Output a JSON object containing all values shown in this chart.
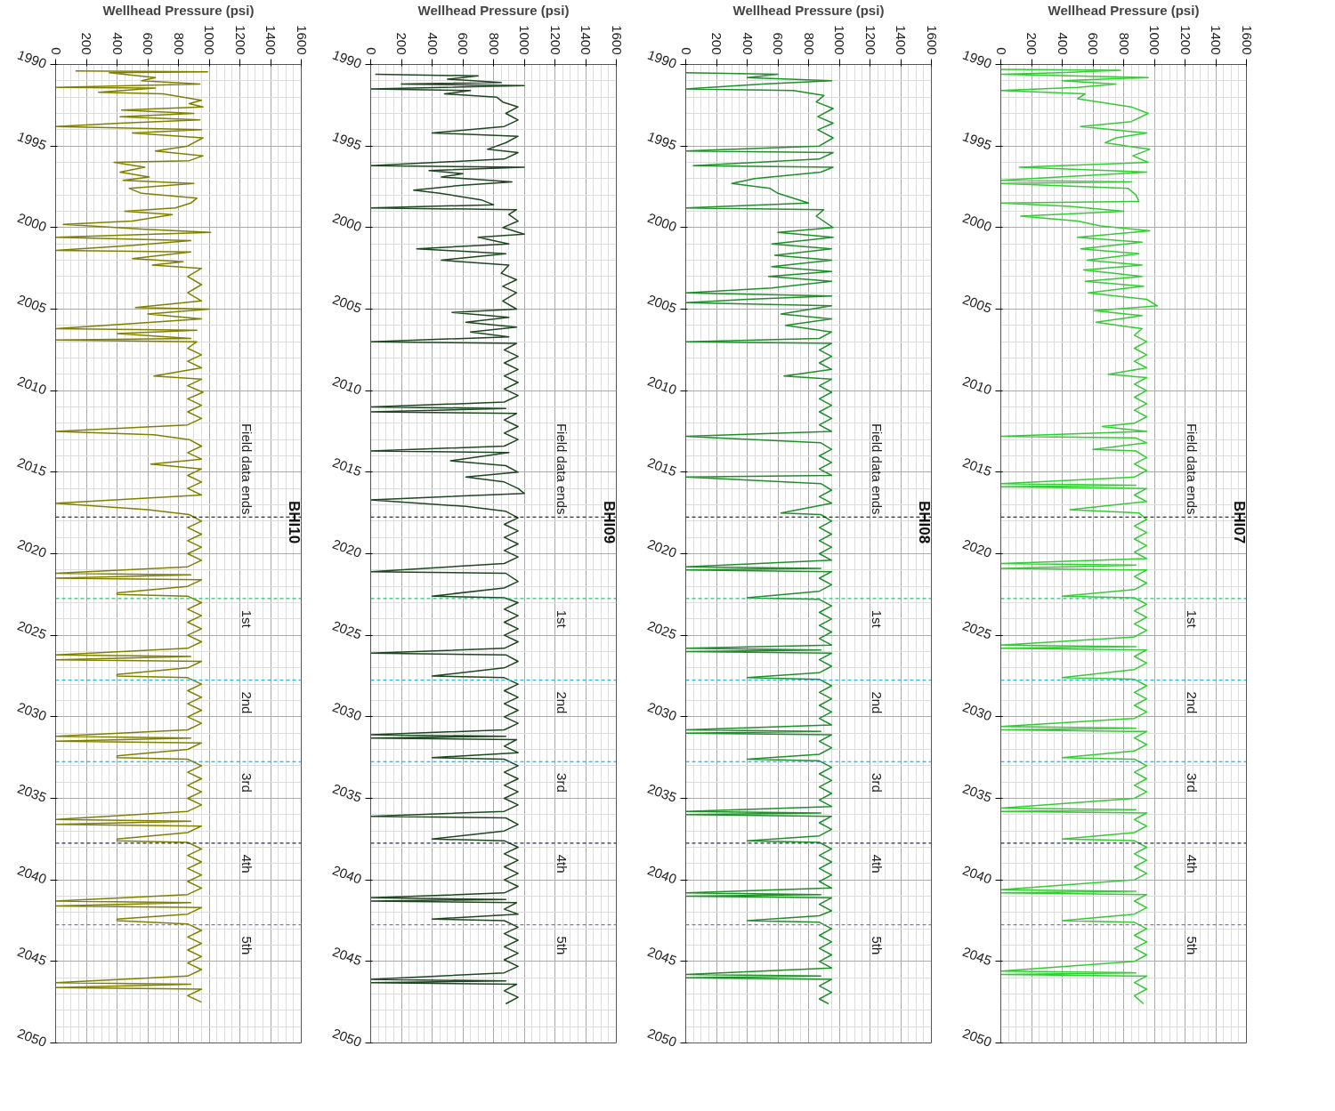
{
  "chart_data": [
    {
      "type": "line",
      "orientation": "horizontal",
      "xlabel": "Wellhead Pressure (psi)",
      "xlim": [
        0,
        1600
      ],
      "xticks": [
        0,
        200,
        400,
        600,
        800,
        1000,
        1200,
        1400,
        1600
      ],
      "ylim": [
        2050,
        1990
      ],
      "yticks": [
        1990,
        1995,
        2000,
        2005,
        2010,
        2015,
        2020,
        2025,
        2030,
        2035,
        2040,
        2045,
        2050
      ],
      "grid": true,
      "annotations": [
        "BHI10"
      ],
      "ref_lines": [
        {
          "axis": "y",
          "value": 2017.75,
          "label": "Field data ends",
          "color": "#000000",
          "line_style": "dashed"
        },
        {
          "axis": "y",
          "value": 2022.75,
          "label": "1st",
          "color": "#2fbf71",
          "line_style": "dashed"
        },
        {
          "axis": "y",
          "value": 2027.75,
          "label": "2nd",
          "color": "#2bb5e0",
          "line_style": "dashed"
        },
        {
          "axis": "y",
          "value": 2032.75,
          "label": "3rd",
          "color": "#2e86c1",
          "line_style": "dashed"
        },
        {
          "axis": "y",
          "value": 2037.75,
          "label": "4th",
          "color": "#1f2f5f",
          "line_style": "dashed"
        },
        {
          "axis": "y",
          "value": 2042.75,
          "label": "5th",
          "color": "#8e6fc1",
          "line_style": "dashed"
        }
      ],
      "series": [
        {
          "color": "#808000",
          "x": [
            1990.4,
            1990.45,
            1990.5,
            1990.8,
            1991.0,
            1991.2,
            1991.4,
            1991.45,
            1991.7,
            1991.8,
            1992.2,
            1992.4,
            1992.6,
            1992.8,
            1993.0,
            1993.2,
            1993.4,
            1993.6,
            1993.8,
            1994.0,
            1994.2,
            1994.5,
            1995.0,
            1995.3,
            1995.6,
            1995.9,
            1996.0,
            1996.3,
            1996.6,
            1996.9,
            1997.1,
            1997.3,
            1997.6,
            1997.9,
            1998.2,
            1998.5,
            1998.8,
            1999.0,
            1999.2,
            1999.6,
            1999.8,
            2000.1,
            2000.3,
            2000.6,
            2000.8,
            2001.1,
            2001.4,
            2001.5,
            2001.9,
            2002.1,
            2002.3,
            2002.5,
            2003.0,
            2003.5,
            2004.0,
            2004.5,
            2004.9,
            2005.0,
            2005.3,
            2005.6,
            2005.8,
            2006.2,
            2006.3,
            2006.5,
            2006.8,
            2006.9,
            2007.0,
            2007.4,
            2007.8,
            2008.2,
            2008.6,
            2009.1,
            2009.3,
            2009.7,
            2010.1,
            2010.5,
            2010.9,
            2011.3,
            2011.7,
            2012.1,
            2012.5,
            2012.7,
            2013.0,
            2013.4,
            2013.8,
            2014.2,
            2014.5,
            2014.8,
            2015.2,
            2015.6,
            2016.0,
            2016.4,
            2016.9,
            2017.3,
            2017.6,
            2018.0,
            2018.4,
            2018.8,
            2019.2,
            2019.6,
            2020.0,
            2020.4,
            2020.8,
            2021.2,
            2021.3,
            2021.5,
            2021.6,
            2022.0,
            2022.4,
            2022.5,
            2022.6,
            2023.0,
            2023.4,
            2023.8,
            2024.2,
            2024.6,
            2025.0,
            2025.4,
            2025.8,
            2026.2,
            2026.3,
            2026.5,
            2026.6,
            2027.0,
            2027.4,
            2027.5,
            2027.6,
            2028.0,
            2028.4,
            2028.8,
            2029.2,
            2029.6,
            2030.0,
            2030.4,
            2030.8,
            2031.2,
            2031.3,
            2031.5,
            2031.6,
            2032.0,
            2032.4,
            2032.5,
            2032.6,
            2033.0,
            2033.4,
            2033.8,
            2034.2,
            2034.6,
            2035.0,
            2035.4,
            2035.8,
            2036.3,
            2036.4,
            2036.6,
            2036.7,
            2037.1,
            2037.5,
            2037.6,
            2037.7,
            2038.1,
            2038.5,
            2038.9,
            2039.3,
            2039.7,
            2040.1,
            2040.5,
            2040.9,
            2041.3,
            2041.4,
            2041.6,
            2041.7,
            2042.1,
            2042.4,
            2042.5,
            2042.7,
            2043.1,
            2043.5,
            2043.9,
            2044.3,
            2044.7,
            2045.1,
            2045.5,
            2045.9,
            2046.3,
            2046.4,
            2046.6,
            2046.7,
            2047.1,
            2047.5
          ],
          "values": [
            130,
            990,
            350,
            650,
            560,
            940,
            0,
            650,
            280,
            700,
            950,
            870,
            960,
            430,
            900,
            420,
            940,
            420,
            0,
            950,
            500,
            960,
            860,
            650,
            960,
            870,
            380,
            580,
            420,
            610,
            440,
            900,
            480,
            560,
            920,
            880,
            780,
            450,
            760,
            500,
            50,
            580,
            1010,
            0,
            880,
            490,
            0,
            880,
            500,
            830,
            630,
            950,
            860,
            950,
            860,
            950,
            520,
            1000,
            600,
            950,
            630,
            0,
            920,
            400,
            880,
            0,
            920,
            860,
            950,
            860,
            950,
            640,
            950,
            860,
            960,
            860,
            950,
            860,
            950,
            860,
            0,
            640,
            870,
            950,
            860,
            950,
            620,
            950,
            860,
            950,
            860,
            950,
            0,
            600,
            870,
            950,
            860,
            950,
            860,
            950,
            860,
            950,
            860,
            0,
            880,
            0,
            950,
            860,
            400,
            400,
            860,
            950,
            860,
            950,
            860,
            950,
            860,
            950,
            860,
            0,
            880,
            0,
            950,
            860,
            400,
            400,
            860,
            950,
            860,
            950,
            860,
            950,
            860,
            950,
            860,
            0,
            880,
            0,
            950,
            860,
            400,
            400,
            860,
            950,
            860,
            950,
            860,
            950,
            860,
            950,
            860,
            0,
            880,
            0,
            950,
            860,
            400,
            400,
            860,
            950,
            860,
            950,
            860,
            950,
            860,
            950,
            860,
            0,
            880,
            0,
            950,
            860,
            400,
            400,
            860,
            950,
            860,
            950,
            860,
            950,
            860,
            950,
            860,
            0,
            880,
            0,
            950,
            860,
            950
          ]
        }
      ]
    },
    {
      "type": "line",
      "orientation": "horizontal",
      "xlabel": "Wellhead Pressure (psi)",
      "xlim": [
        0,
        1600
      ],
      "xticks": [
        0,
        200,
        400,
        600,
        800,
        1000,
        1200,
        1400,
        1600
      ],
      "ylim": [
        2050,
        1990
      ],
      "yticks": [
        1990,
        1995,
        2000,
        2005,
        2010,
        2015,
        2020,
        2025,
        2030,
        2035,
        2040,
        2045,
        2050
      ],
      "grid": true,
      "annotations": [
        "BHI09"
      ],
      "ref_lines": [
        {
          "axis": "y",
          "value": 2017.75,
          "label": "Field data ends",
          "color": "#000000",
          "line_style": "dashed"
        },
        {
          "axis": "y",
          "value": 2022.75,
          "label": "1st",
          "color": "#2fbf71",
          "line_style": "dashed"
        },
        {
          "axis": "y",
          "value": 2027.75,
          "label": "2nd",
          "color": "#2bb5e0",
          "line_style": "dashed"
        },
        {
          "axis": "y",
          "value": 2032.75,
          "label": "3rd",
          "color": "#2e86c1",
          "line_style": "dashed"
        },
        {
          "axis": "y",
          "value": 2037.75,
          "label": "4th",
          "color": "#1f2f5f",
          "line_style": "dashed"
        },
        {
          "axis": "y",
          "value": 2042.75,
          "label": "5th",
          "color": "#8e6fc1",
          "line_style": "dashed"
        }
      ],
      "series": [
        {
          "color": "#1e4620",
          "x": [
            1990.6,
            1990.7,
            1990.9,
            1991.1,
            1991.2,
            1991.3,
            1991.5,
            1991.6,
            1991.8,
            1992.0,
            1992.3,
            1992.6,
            1993.0,
            1993.4,
            1993.8,
            1994.2,
            1994.4,
            1994.8,
            1995.2,
            1995.4,
            1995.8,
            1996.2,
            1996.3,
            1996.5,
            1996.7,
            1996.9,
            1997.2,
            1997.4,
            1997.7,
            1997.9,
            1998.3,
            1998.6,
            1998.8,
            1998.9,
            1999.2,
            1999.6,
            2000.0,
            2000.4,
            2000.6,
            2001.0,
            2001.3,
            2001.6,
            2002.0,
            2002.3,
            2002.8,
            2003.2,
            2003.6,
            2004.0,
            2004.5,
            2005.0,
            2005.2,
            2005.5,
            2005.8,
            2006.1,
            2006.4,
            2006.7,
            2007.0,
            2007.1,
            2007.5,
            2007.9,
            2008.3,
            2008.7,
            2009.1,
            2009.5,
            2009.9,
            2010.3,
            2010.7,
            2011.0,
            2011.1,
            2011.3,
            2011.4,
            2011.8,
            2012.2,
            2012.6,
            2013.0,
            2013.4,
            2013.7,
            2013.8,
            2014.3,
            2014.6,
            2015.0,
            2015.3,
            2015.6,
            2016.0,
            2016.3,
            2016.7,
            2017.1,
            2017.4,
            2017.8,
            2018.2,
            2018.6,
            2019.0,
            2019.4,
            2019.8,
            2020.2,
            2020.6,
            2021.1,
            2021.2,
            2021.7,
            2022.1,
            2022.6,
            2022.7,
            2023.0,
            2023.4,
            2023.8,
            2024.2,
            2024.6,
            2025.0,
            2025.4,
            2025.8,
            2026.1,
            2026.2,
            2026.6,
            2027.0,
            2027.5,
            2027.6,
            2028.0,
            2028.4,
            2028.8,
            2029.2,
            2029.6,
            2030.0,
            2030.4,
            2030.8,
            2031.1,
            2031.2,
            2031.3,
            2031.4,
            2031.8,
            2032.2,
            2032.5,
            2032.6,
            2033.0,
            2033.4,
            2033.8,
            2034.2,
            2034.6,
            2035.0,
            2035.4,
            2035.8,
            2036.1,
            2036.2,
            2036.6,
            2037.0,
            2037.5,
            2037.6,
            2038.0,
            2038.4,
            2038.8,
            2039.2,
            2039.6,
            2040.0,
            2040.4,
            2040.8,
            2041.1,
            2041.2,
            2041.3,
            2041.4,
            2041.8,
            2042.1,
            2042.4,
            2042.5,
            2042.9,
            2043.3,
            2043.7,
            2044.1,
            2044.5,
            2044.9,
            2045.3,
            2045.7,
            2046.1,
            2046.2,
            2046.3,
            2046.4,
            2046.8,
            2047.2,
            2047.6
          ],
          "values": [
            30,
            700,
            500,
            850,
            200,
            1000,
            0,
            650,
            480,
            820,
            860,
            960,
            880,
            960,
            870,
            400,
            960,
            880,
            760,
            960,
            870,
            0,
            1000,
            380,
            600,
            460,
            920,
            600,
            280,
            450,
            720,
            800,
            0,
            950,
            900,
            960,
            860,
            1000,
            700,
            900,
            300,
            880,
            460,
            900,
            850,
            950,
            860,
            950,
            860,
            950,
            530,
            900,
            620,
            950,
            650,
            900,
            0,
            950,
            870,
            960,
            870,
            960,
            870,
            960,
            870,
            960,
            870,
            0,
            880,
            0,
            950,
            870,
            960,
            870,
            960,
            870,
            0,
            900,
            520,
            880,
            960,
            620,
            870,
            960,
            1000,
            0,
            620,
            880,
            960,
            870,
            960,
            870,
            960,
            870,
            960,
            870,
            0,
            880,
            960,
            870,
            400,
            870,
            960,
            870,
            960,
            870,
            960,
            870,
            960,
            870,
            0,
            880,
            960,
            870,
            400,
            870,
            960,
            870,
            960,
            870,
            960,
            870,
            960,
            870,
            0,
            880,
            0,
            950,
            870,
            960,
            400,
            870,
            960,
            870,
            960,
            870,
            960,
            870,
            960,
            870,
            0,
            880,
            960,
            870,
            400,
            870,
            960,
            870,
            960,
            870,
            960,
            870,
            960,
            870,
            0,
            880,
            0,
            950,
            870,
            960,
            400,
            870,
            960,
            870,
            960,
            870,
            960,
            870,
            960,
            870,
            0,
            880,
            0,
            950,
            870,
            960,
            880
          ]
        }
      ]
    },
    {
      "type": "line",
      "orientation": "horizontal",
      "xlabel": "Wellhead Pressure (psi)",
      "xlim": [
        0,
        1600
      ],
      "xticks": [
        0,
        200,
        400,
        600,
        800,
        1000,
        1200,
        1400,
        1600
      ],
      "ylim": [
        2050,
        1990
      ],
      "yticks": [
        1990,
        1995,
        2000,
        2005,
        2010,
        2015,
        2020,
        2025,
        2030,
        2035,
        2040,
        2045,
        2050
      ],
      "grid": true,
      "annotations": [
        "BHI08"
      ],
      "ref_lines": [
        {
          "axis": "y",
          "value": 2017.75,
          "label": "Field data ends",
          "color": "#000000",
          "line_style": "dashed"
        },
        {
          "axis": "y",
          "value": 2022.75,
          "label": "1st",
          "color": "#2fbf71",
          "line_style": "dashed"
        },
        {
          "axis": "y",
          "value": 2027.75,
          "label": "2nd",
          "color": "#2bb5e0",
          "line_style": "dashed"
        },
        {
          "axis": "y",
          "value": 2032.75,
          "label": "3rd",
          "color": "#2e86c1",
          "line_style": "dashed"
        },
        {
          "axis": "y",
          "value": 2037.75,
          "label": "4th",
          "color": "#1f2f5f",
          "line_style": "dashed"
        },
        {
          "axis": "y",
          "value": 2042.75,
          "label": "5th",
          "color": "#8e6fc1",
          "line_style": "dashed"
        }
      ],
      "series": [
        {
          "color": "#1f8f2a",
          "x": [
            1990.5,
            1990.6,
            1990.8,
            1991.0,
            1991.2,
            1991.5,
            1991.6,
            1991.9,
            1992.3,
            1992.7,
            1993.2,
            1993.6,
            1994.0,
            1994.5,
            1995.0,
            1995.3,
            1995.4,
            1995.8,
            1996.2,
            1996.3,
            1996.6,
            1997.0,
            1997.3,
            1997.6,
            1997.9,
            1998.2,
            1998.5,
            1998.8,
            1998.9,
            1999.3,
            2000.0,
            2000.3,
            2000.6,
            2001.0,
            2001.3,
            2001.7,
            2002.0,
            2002.4,
            2002.7,
            2003.0,
            2003.3,
            2003.7,
            2004.0,
            2004.2,
            2004.4,
            2004.6,
            2004.8,
            2005.3,
            2005.6,
            2006.0,
            2006.4,
            2006.8,
            2007.0,
            2007.1,
            2007.5,
            2007.9,
            2008.3,
            2008.7,
            2009.1,
            2009.3,
            2009.7,
            2010.1,
            2010.5,
            2010.9,
            2011.3,
            2011.7,
            2012.1,
            2012.5,
            2012.8,
            2012.9,
            2013.2,
            2013.6,
            2014.0,
            2014.4,
            2014.8,
            2015.2,
            2015.3,
            2015.7,
            2016.1,
            2016.5,
            2016.9,
            2017.5,
            2017.6,
            2018.0,
            2018.4,
            2018.8,
            2019.2,
            2019.6,
            2020.0,
            2020.4,
            2020.8,
            2020.9,
            2021.0,
            2021.1,
            2021.5,
            2021.9,
            2022.3,
            2022.7,
            2022.8,
            2023.2,
            2023.6,
            2024.0,
            2024.4,
            2024.8,
            2025.2,
            2025.6,
            2025.8,
            2025.9,
            2026.0,
            2026.1,
            2026.5,
            2026.9,
            2027.3,
            2027.6,
            2027.7,
            2028.1,
            2028.5,
            2028.9,
            2029.3,
            2029.7,
            2030.1,
            2030.5,
            2030.8,
            2030.9,
            2031.0,
            2031.1,
            2031.5,
            2031.9,
            2032.3,
            2032.6,
            2032.7,
            2033.1,
            2033.5,
            2033.9,
            2034.3,
            2034.7,
            2035.1,
            2035.5,
            2035.8,
            2035.9,
            2036.0,
            2036.1,
            2036.5,
            2036.9,
            2037.3,
            2037.6,
            2037.7,
            2038.1,
            2038.5,
            2038.9,
            2039.3,
            2039.7,
            2040.1,
            2040.5,
            2040.8,
            2040.9,
            2041.0,
            2041.1,
            2041.5,
            2041.9,
            2042.2,
            2042.5,
            2042.6,
            2043.0,
            2043.4,
            2043.8,
            2044.2,
            2044.6,
            2045.0,
            2045.4,
            2045.8,
            2045.9,
            2046.0,
            2046.1,
            2046.5,
            2046.9,
            2047.3,
            2047.6
          ],
          "values": [
            0,
            600,
            400,
            950,
            500,
            0,
            700,
            900,
            850,
            960,
            860,
            960,
            860,
            960,
            870,
            0,
            960,
            870,
            50,
            960,
            880,
            450,
            300,
            550,
            600,
            700,
            800,
            0,
            900,
            850,
            960,
            600,
            960,
            560,
            950,
            580,
            950,
            560,
            950,
            540,
            950,
            560,
            0,
            950,
            400,
            0,
            950,
            620,
            950,
            650,
            950,
            870,
            0,
            950,
            870,
            950,
            870,
            950,
            640,
            950,
            870,
            950,
            870,
            950,
            870,
            950,
            870,
            950,
            0,
            200,
            880,
            950,
            870,
            950,
            870,
            950,
            0,
            880,
            950,
            870,
            950,
            620,
            880,
            950,
            870,
            950,
            870,
            950,
            870,
            950,
            0,
            880,
            0,
            950,
            870,
            950,
            870,
            400,
            870,
            950,
            870,
            950,
            870,
            950,
            870,
            950,
            0,
            880,
            0,
            950,
            870,
            950,
            870,
            400,
            870,
            950,
            870,
            950,
            870,
            950,
            870,
            950,
            0,
            880,
            0,
            950,
            870,
            950,
            870,
            400,
            870,
            950,
            870,
            950,
            870,
            950,
            870,
            950,
            0,
            880,
            0,
            950,
            870,
            950,
            870,
            400,
            870,
            950,
            870,
            950,
            870,
            950,
            870,
            950,
            0,
            880,
            0,
            950,
            870,
            950,
            870,
            400,
            870,
            950,
            870,
            950,
            870,
            950,
            870,
            950,
            0,
            880,
            0,
            950,
            870,
            950,
            870,
            930
          ]
        }
      ]
    },
    {
      "type": "line",
      "orientation": "horizontal",
      "xlabel": "Wellhead Pressure (psi)",
      "xlim": [
        0,
        1600
      ],
      "xticks": [
        0,
        200,
        400,
        600,
        800,
        1000,
        1200,
        1400,
        1600
      ],
      "ylim": [
        2050,
        1990
      ],
      "yticks": [
        1990,
        1995,
        2000,
        2005,
        2010,
        2015,
        2020,
        2025,
        2030,
        2035,
        2040,
        2045,
        2050
      ],
      "grid": true,
      "annotations": [
        "BHI07"
      ],
      "ref_lines": [
        {
          "axis": "y",
          "value": 2017.75,
          "label": "Field data ends",
          "color": "#000000",
          "line_style": "dashed"
        },
        {
          "axis": "y",
          "value": 2022.75,
          "label": "1st",
          "color": "#2fbf71",
          "line_style": "dashed"
        },
        {
          "axis": "y",
          "value": 2027.75,
          "label": "2nd",
          "color": "#2bb5e0",
          "line_style": "dashed"
        },
        {
          "axis": "y",
          "value": 2032.75,
          "label": "3rd",
          "color": "#2e86c1",
          "line_style": "dashed"
        },
        {
          "axis": "y",
          "value": 2037.75,
          "label": "4th",
          "color": "#1f2f5f",
          "line_style": "dashed"
        },
        {
          "axis": "y",
          "value": 2042.75,
          "label": "5th",
          "color": "#8e6fc1",
          "line_style": "dashed"
        }
      ],
      "series": [
        {
          "color": "#33cc33",
          "x": [
            1990.3,
            1990.35,
            1990.5,
            1990.6,
            1990.8,
            1991.0,
            1991.2,
            1991.4,
            1991.6,
            1991.8,
            1992.1,
            1992.6,
            1993.0,
            1993.5,
            1993.8,
            1994.2,
            1994.5,
            1994.8,
            1995.2,
            1995.6,
            1996.0,
            1996.3,
            1996.6,
            1996.9,
            1997.1,
            1997.2,
            1997.3,
            1997.6,
            1998.0,
            1998.4,
            1998.5,
            1998.7,
            1999.0,
            1999.3,
            1999.6,
            1999.9,
            2000.2,
            2000.6,
            2000.9,
            2001.3,
            2001.6,
            2002.0,
            2002.3,
            2002.6,
            2003.0,
            2003.3,
            2003.6,
            2004.0,
            2004.4,
            2004.8,
            2005.1,
            2005.4,
            2005.8,
            2006.2,
            2006.6,
            2007.0,
            2007.4,
            2007.8,
            2008.2,
            2008.6,
            2009.0,
            2009.2,
            2009.6,
            2010.0,
            2010.4,
            2010.8,
            2011.2,
            2011.6,
            2012.0,
            2012.2,
            2012.5,
            2012.8,
            2012.9,
            2013.2,
            2013.6,
            2013.7,
            2014.1,
            2014.5,
            2014.9,
            2015.3,
            2015.7,
            2015.8,
            2015.9,
            2016.0,
            2016.4,
            2016.8,
            2017.3,
            2017.5,
            2017.9,
            2018.3,
            2018.7,
            2019.1,
            2019.5,
            2019.9,
            2020.3,
            2020.6,
            2020.7,
            2020.9,
            2021.0,
            2021.4,
            2021.8,
            2022.2,
            2022.6,
            2022.7,
            2023.1,
            2023.5,
            2023.9,
            2024.3,
            2024.7,
            2025.1,
            2025.6,
            2025.7,
            2025.8,
            2025.9,
            2026.3,
            2026.7,
            2027.1,
            2027.6,
            2027.7,
            2028.1,
            2028.5,
            2028.9,
            2029.3,
            2029.7,
            2030.1,
            2030.6,
            2030.7,
            2030.8,
            2030.9,
            2031.3,
            2031.7,
            2032.1,
            2032.5,
            2032.6,
            2033.0,
            2033.4,
            2033.8,
            2034.2,
            2034.6,
            2035.0,
            2035.6,
            2035.7,
            2035.8,
            2035.9,
            2036.3,
            2036.7,
            2037.1,
            2037.5,
            2037.6,
            2038.0,
            2038.4,
            2038.8,
            2039.2,
            2039.6,
            2040.0,
            2040.6,
            2040.7,
            2040.8,
            2040.9,
            2041.3,
            2041.7,
            2042.1,
            2042.5,
            2042.6,
            2043.0,
            2043.4,
            2043.8,
            2044.2,
            2044.6,
            2045.0,
            2045.6,
            2045.7,
            2045.8,
            2045.9,
            2046.3,
            2046.7,
            2047.1,
            2047.6
          ],
          "values": [
            0,
            780,
            380,
            0,
            960,
            400,
            750,
            500,
            0,
            550,
            500,
            850,
            960,
            850,
            520,
            950,
            750,
            680,
            970,
            860,
            960,
            120,
            950,
            380,
            0,
            850,
            0,
            830,
            880,
            900,
            0,
            450,
            800,
            130,
            500,
            650,
            970,
            500,
            920,
            520,
            900,
            560,
            920,
            540,
            920,
            550,
            930,
            570,
            950,
            1020,
            610,
            920,
            620,
            920,
            870,
            950,
            870,
            950,
            870,
            950,
            700,
            950,
            870,
            950,
            870,
            950,
            870,
            950,
            870,
            660,
            950,
            0,
            880,
            950,
            600,
            880,
            950,
            870,
            950,
            870,
            0,
            880,
            0,
            950,
            870,
            950,
            450,
            900,
            950,
            870,
            950,
            870,
            950,
            870,
            950,
            0,
            880,
            0,
            950,
            870,
            950,
            870,
            400,
            870,
            950,
            870,
            950,
            870,
            950,
            870,
            0,
            880,
            0,
            950,
            870,
            950,
            870,
            400,
            870,
            950,
            870,
            950,
            870,
            950,
            870,
            0,
            880,
            0,
            950,
            870,
            950,
            870,
            400,
            870,
            950,
            870,
            950,
            870,
            950,
            870,
            0,
            880,
            0,
            950,
            870,
            950,
            870,
            400,
            870,
            950,
            870,
            950,
            870,
            950,
            870,
            0,
            880,
            0,
            950,
            870,
            950,
            870,
            400,
            870,
            950,
            870,
            950,
            870,
            950,
            870,
            0,
            880,
            0,
            950,
            870,
            950,
            870,
            930
          ]
        }
      ]
    }
  ]
}
